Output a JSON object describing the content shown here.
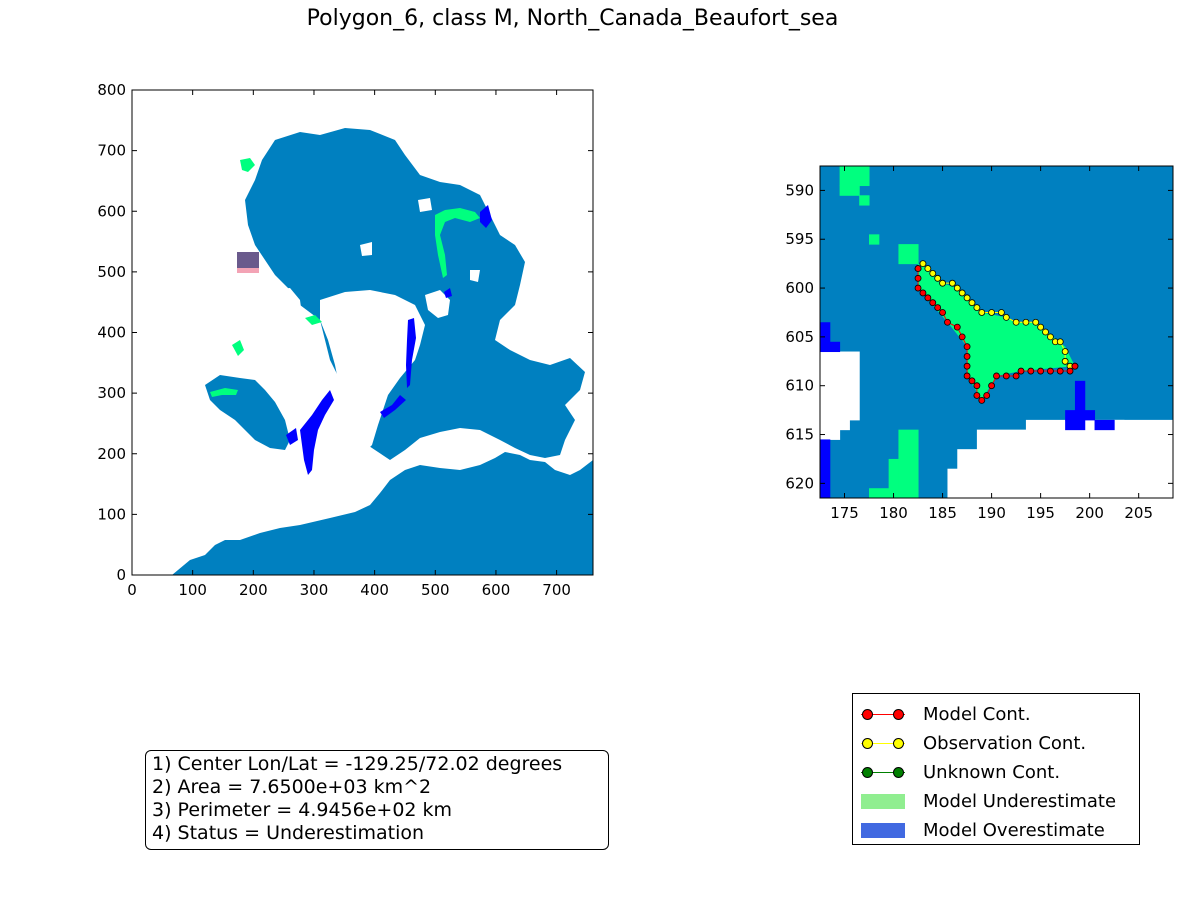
{
  "title": "Polygon_6, class M, North_Canada_Beaufort_sea",
  "colors": {
    "ocean": "#0080C0",
    "land": "#FFFFFF",
    "model_underestimate_region": "#00FF7F",
    "model_overestimate_region": "#0000FF",
    "zoom_box": "#6A5A8C",
    "zoom_box_fill": "#F3A3B5",
    "model_contour": "#FF0000",
    "observation_contour": "#FFFF00",
    "unknown_contour": "#008000",
    "legend_underestimate": "#90EE90",
    "legend_overestimate": "#4169E1"
  },
  "chart_data": [
    {
      "type": "heatmap",
      "name": "overview-map",
      "xlim": [
        0,
        760
      ],
      "ylim": [
        0,
        800
      ],
      "xticks": [
        "0",
        "100",
        "200",
        "300",
        "400",
        "500",
        "600",
        "700"
      ],
      "yticks": [
        "0",
        "100",
        "200",
        "300",
        "400",
        "500",
        "600",
        "700",
        "800"
      ],
      "grid": false,
      "zoom_region": {
        "x": [
          172,
          208
        ],
        "y": [
          588,
          622
        ]
      }
    },
    {
      "type": "heatmap",
      "name": "zoom-map",
      "xlim": [
        172.5,
        208.5
      ],
      "ylim": [
        621.5,
        587.5
      ],
      "xticks": [
        "175",
        "180",
        "185",
        "190",
        "195",
        "200",
        "205"
      ],
      "yticks": [
        "590",
        "595",
        "600",
        "605",
        "610",
        "615",
        "620"
      ],
      "grid": false,
      "model_contour": [
        [
          182.5,
          598
        ],
        [
          182.5,
          599
        ],
        [
          182.5,
          600
        ],
        [
          183,
          600.5
        ],
        [
          183.5,
          601
        ],
        [
          184,
          601.5
        ],
        [
          184.5,
          602
        ],
        [
          185,
          602.5
        ],
        [
          185.5,
          603.5
        ],
        [
          186.5,
          604
        ],
        [
          187,
          605
        ],
        [
          187.5,
          606
        ],
        [
          187.5,
          607
        ],
        [
          187.5,
          608
        ],
        [
          187.5,
          609
        ],
        [
          188,
          609.5
        ],
        [
          188.5,
          610
        ],
        [
          188.5,
          611
        ],
        [
          189,
          611.5
        ],
        [
          189.5,
          611
        ],
        [
          190,
          610
        ],
        [
          190.5,
          609
        ],
        [
          191.5,
          609
        ],
        [
          192.5,
          609
        ],
        [
          193,
          608.5
        ],
        [
          194,
          608.5
        ],
        [
          195,
          608.5
        ],
        [
          196,
          608.5
        ],
        [
          197,
          608.5
        ],
        [
          198,
          608.5
        ],
        [
          198.5,
          608
        ]
      ],
      "observation_contour": [
        [
          182.5,
          598
        ],
        [
          183,
          597.5
        ],
        [
          183.5,
          598
        ],
        [
          184,
          598.5
        ],
        [
          184.5,
          599
        ],
        [
          185,
          599.5
        ],
        [
          186,
          599.5
        ],
        [
          186.5,
          600
        ],
        [
          187,
          600.5
        ],
        [
          187.5,
          601
        ],
        [
          188,
          601.5
        ],
        [
          188.5,
          602
        ],
        [
          189,
          602.5
        ],
        [
          190,
          602.5
        ],
        [
          191,
          602.5
        ],
        [
          191.5,
          603
        ],
        [
          192.5,
          603.5
        ],
        [
          193.5,
          603.5
        ],
        [
          194.5,
          603.5
        ],
        [
          195,
          604
        ],
        [
          195.5,
          604.5
        ],
        [
          196,
          605
        ],
        [
          196.5,
          605.5
        ],
        [
          197,
          605.5
        ],
        [
          197.5,
          606.5
        ],
        [
          197.5,
          607.5
        ],
        [
          198,
          608
        ],
        [
          198.5,
          608
        ]
      ]
    }
  ],
  "info": {
    "line1": "1) Center Lon/Lat = -129.25/72.02 degrees",
    "line2": "2) Area = 7.6500e+03 km^2",
    "line3": "3) Perimeter = 4.9456e+02 km",
    "line4": "4) Status = Underestimation"
  },
  "legend": {
    "model_cont": "Model Cont.",
    "observation_cont": "Observation Cont.",
    "unknown_cont": "Unknown Cont.",
    "model_underestimate": "Model Underestimate",
    "model_overestimate": "Model Overestimate"
  }
}
